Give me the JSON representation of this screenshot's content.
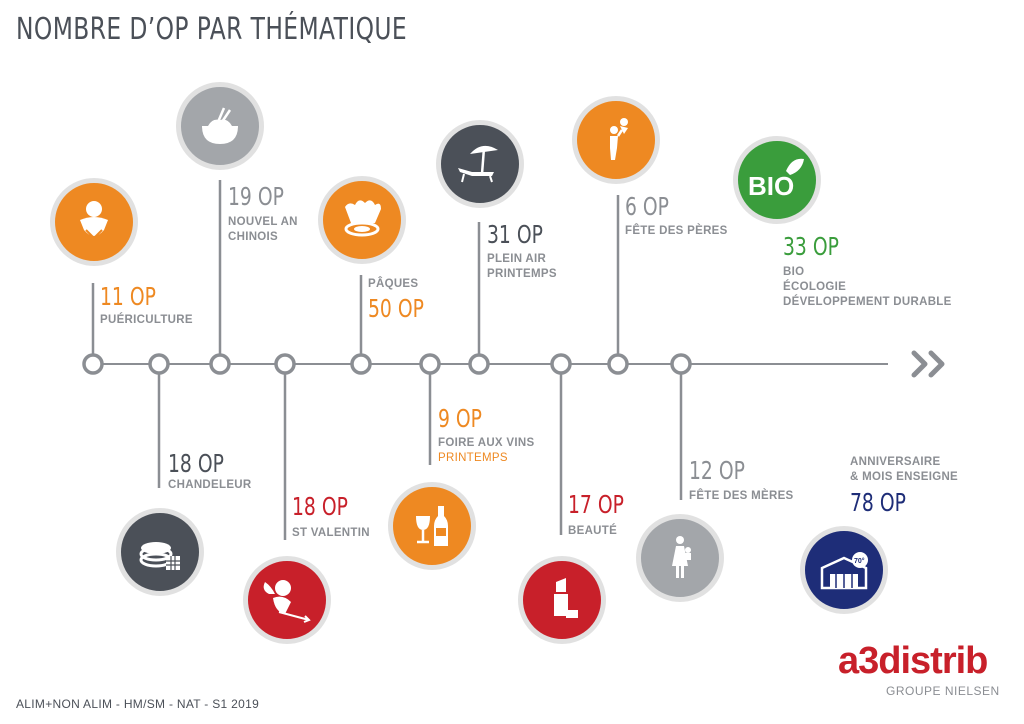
{
  "title": "NOMBRE D’OP PAR THÉMATIQUE",
  "footer": "ALIM+NON ALIM - HM/SM - NAT - S1 2019",
  "logo": {
    "name": "a3distrib",
    "subtitle": "GROUPE NIELSEN"
  },
  "colors": {
    "orange": "#ee8922",
    "grey": "#8b8e93",
    "dark": "#4b5058",
    "red": "#c8202a",
    "green": "#3a9d3c",
    "navy": "#1e2d78"
  },
  "events": [
    {
      "count": "11 OP",
      "lines": [
        "PUÉRICULTURE"
      ],
      "icon": "baby-icon",
      "color": "orange"
    },
    {
      "count": "18 OP",
      "lines": [
        "CHANDELEUR"
      ],
      "icon": "crepes-icon",
      "color": "dark"
    },
    {
      "count": "19 OP",
      "lines": [
        "NOUVEL AN",
        "CHINOIS"
      ],
      "icon": "rice-bowl-icon",
      "color": "grey"
    },
    {
      "count": "18 OP",
      "lines": [
        "ST VALENTIN"
      ],
      "icon": "cupid-icon",
      "color": "red"
    },
    {
      "count": "50 OP",
      "lines": [
        "PÂQUES"
      ],
      "icon": "easter-bell-icon",
      "color": "orange"
    },
    {
      "count": "9 OP",
      "lines": [
        "FOIRE AUX VINS",
        "PRINTEMPS"
      ],
      "icon": "wine-icon",
      "color": "orange"
    },
    {
      "count": "31 OP",
      "lines": [
        "PLEIN AIR",
        "PRINTEMPS"
      ],
      "icon": "beach-umbrella-icon",
      "color": "dark"
    },
    {
      "count": "17 OP",
      "lines": [
        "BEAUTÉ"
      ],
      "icon": "lipstick-icon",
      "color": "red"
    },
    {
      "count": "6 OP",
      "lines": [
        "FÊTE DES PÈRES"
      ],
      "icon": "father-child-icon",
      "color": "orange"
    },
    {
      "count": "12 OP",
      "lines": [
        "FÊTE DES MÈRES"
      ],
      "icon": "mother-child-icon",
      "color": "grey"
    },
    {
      "count": "33 OP",
      "lines": [
        "BIO",
        "ÉCOLOGIE",
        "DÉVELOPPEMENT DURABLE"
      ],
      "icon": "bio-leaf-icon",
      "icon_text": "BIO",
      "color": "green"
    },
    {
      "count": "78 OP",
      "lines": [
        "ANNIVERSAIRE",
        "& MOIS ENSEIGNE"
      ],
      "icon": "store-anniversary-icon",
      "icon_text": "70°",
      "color": "navy"
    }
  ]
}
